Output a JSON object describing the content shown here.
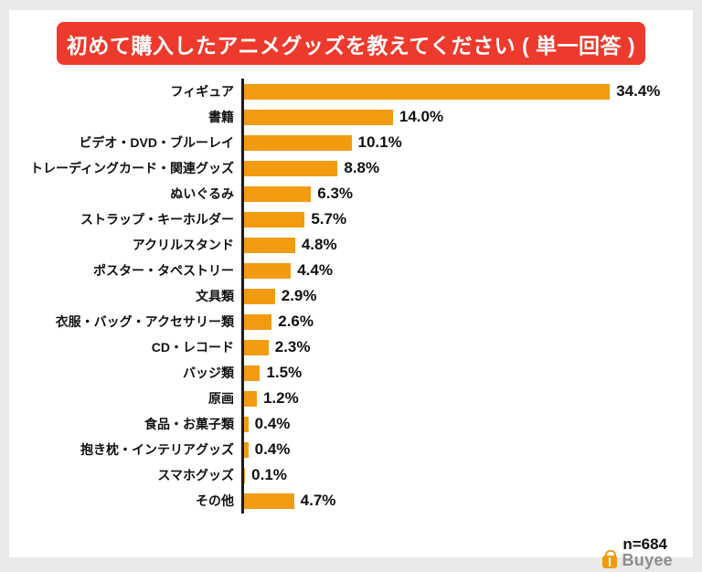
{
  "title": "初めて購入したアニメグッズを教えてください ( 単一回答 )",
  "sample_size": "n=684",
  "brand": {
    "name": "Buyee"
  },
  "colors": {
    "header_bg": "#ee3a2c",
    "bar": "#f29b11",
    "page_bg": "#e9e9e9",
    "axis": "#1a1a1a"
  },
  "chart_data": {
    "type": "bar",
    "orientation": "horizontal",
    "title": "初めて購入したアニメグッズを教えてください ( 単一回答 )",
    "categories": [
      "フィギュア",
      "書籍",
      "ビデオ・DVD・ブルーレイ",
      "トレーディングカード・関連グッズ",
      "ぬいぐるみ",
      "ストラップ・キーホルダー",
      "アクリルスタンド",
      "ポスター・タペストリー",
      "文具類",
      "衣服・バッグ・アクセサリー類",
      "CD・レコード",
      "バッジ類",
      "原画",
      "食品・お菓子類",
      "抱き枕・インテリアグッズ",
      "スマホグッズ",
      "その他"
    ],
    "values": [
      34.4,
      14.0,
      10.1,
      8.8,
      6.3,
      5.7,
      4.8,
      4.4,
      2.9,
      2.6,
      2.3,
      1.5,
      1.2,
      0.4,
      0.4,
      0.1,
      4.7
    ],
    "value_labels": [
      "34.4%",
      "14.0%",
      "10.1%",
      "8.8%",
      "6.3%",
      "5.7%",
      "4.8%",
      "4.4%",
      "2.9%",
      "2.6%",
      "2.3%",
      "1.5%",
      "1.2%",
      "0.4%",
      "0.4%",
      "0.1%",
      "4.7%"
    ],
    "annotation": "n=684",
    "xlim": [
      0,
      41
    ],
    "grid": false,
    "legend": false
  }
}
